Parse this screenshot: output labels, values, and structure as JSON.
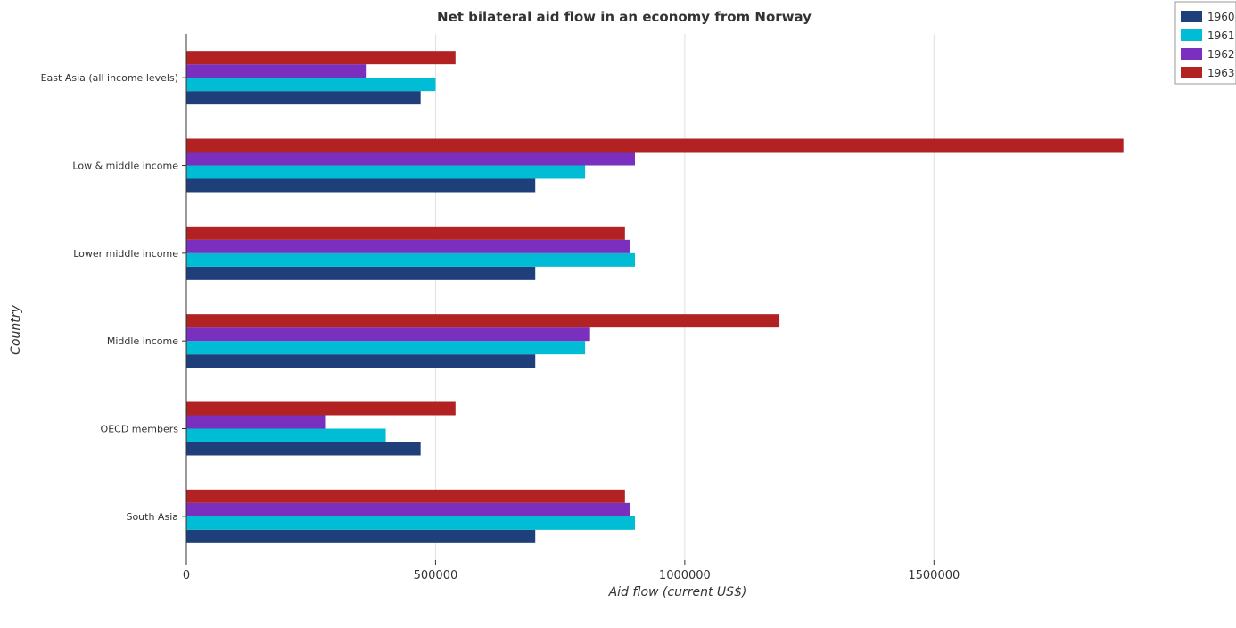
{
  "chart_data": {
    "type": "bar",
    "orientation": "horizontal",
    "title": "Net bilateral aid flow in an economy from Norway",
    "xlabel": "Aid flow (current US$)",
    "ylabel": "Country",
    "xlim": [
      0,
      1970000
    ],
    "xticks": [
      0,
      500000,
      1000000,
      1500000
    ],
    "xtick_labels": [
      "0",
      "500000",
      "1000000",
      "1500000"
    ],
    "grid": "vertical",
    "legend_position": "top-right",
    "categories": [
      "East Asia (all income levels)",
      "Low & middle income",
      "Lower middle income",
      "Middle income",
      "OECD members",
      "South Asia"
    ],
    "series": [
      {
        "name": "1960",
        "color": "#1f3f7a",
        "values": [
          470000,
          700000,
          700000,
          700000,
          470000,
          700000
        ]
      },
      {
        "name": "1961",
        "color": "#00bcd4",
        "values": [
          500000,
          800000,
          900000,
          800000,
          400000,
          900000
        ]
      },
      {
        "name": "1962",
        "color": "#7b2fbe",
        "values": [
          360000,
          900000,
          890000,
          810000,
          280000,
          890000
        ]
      },
      {
        "name": "1963",
        "color": "#b22222",
        "values": [
          540000,
          1880000,
          880000,
          1190000,
          540000,
          880000
        ]
      }
    ]
  }
}
